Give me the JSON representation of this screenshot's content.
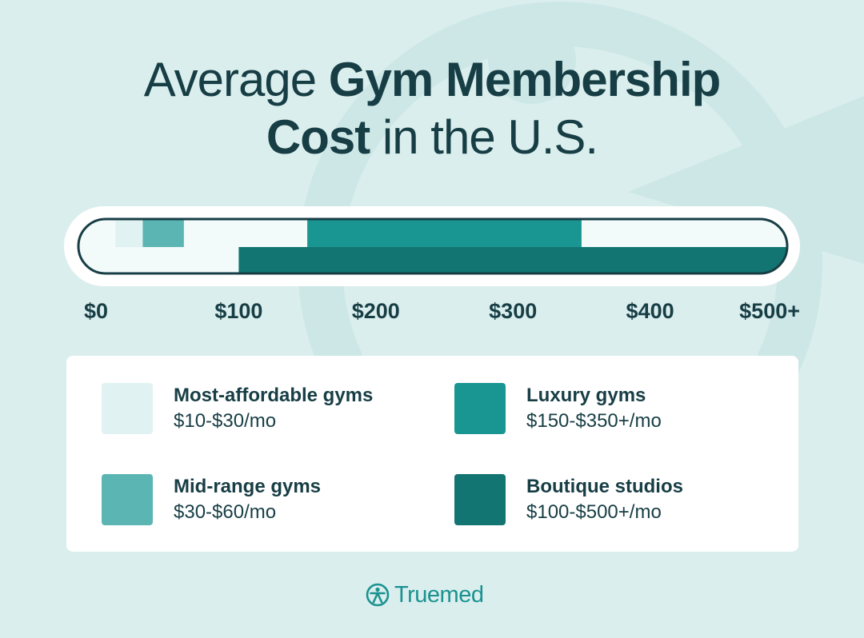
{
  "title": {
    "line1_regular": "Average ",
    "line1_bold": "Gym Membership",
    "line2_bold": "Cost",
    "line2_regular": " in the U.S."
  },
  "brand": {
    "name": "Truemed",
    "mark": "truemed-logo-icon"
  },
  "colors": {
    "background": "#dbeeee",
    "text": "#173e45",
    "most_affordable": "#e1f2f2",
    "mid_range": "#5bb5b3",
    "luxury": "#1a9692",
    "boutique": "#127571"
  },
  "chart_data": {
    "type": "bar",
    "orientation": "horizontal",
    "title": "Average Gym Membership Cost in the U.S.",
    "xlim": [
      0,
      500
    ],
    "x_ticks": [
      0,
      100,
      200,
      300,
      400,
      500
    ],
    "x_tick_labels": [
      "$0",
      "$100",
      "$200",
      "$300",
      "$400",
      "$500+"
    ],
    "series": [
      {
        "name": "Most-affordable gyms",
        "range_label": "$10-$30/mo",
        "min": 10,
        "max": 30,
        "row": "top",
        "color": "#e1f2f2"
      },
      {
        "name": "Mid-range gyms",
        "range_label": "$30-$60/mo",
        "min": 30,
        "max": 60,
        "row": "top",
        "color": "#5bb5b3"
      },
      {
        "name": "Luxury gyms",
        "range_label": "$150-$350+/mo",
        "min": 150,
        "max": 350,
        "row": "top",
        "color": "#1a9692"
      },
      {
        "name": "Boutique studios",
        "range_label": "$100-$500+/mo",
        "min": 100,
        "max": 500,
        "row": "bottom",
        "color": "#127571"
      }
    ]
  },
  "legend": {
    "items": [
      {
        "name": "Most-affordable gyms",
        "range": "$10-$30/mo"
      },
      {
        "name": "Luxury gyms",
        "range": "$150-$350+/mo"
      },
      {
        "name": "Mid-range gyms",
        "range": "$30-$60/mo"
      },
      {
        "name": "Boutique studios",
        "range": "$100-$500+/mo"
      }
    ]
  }
}
